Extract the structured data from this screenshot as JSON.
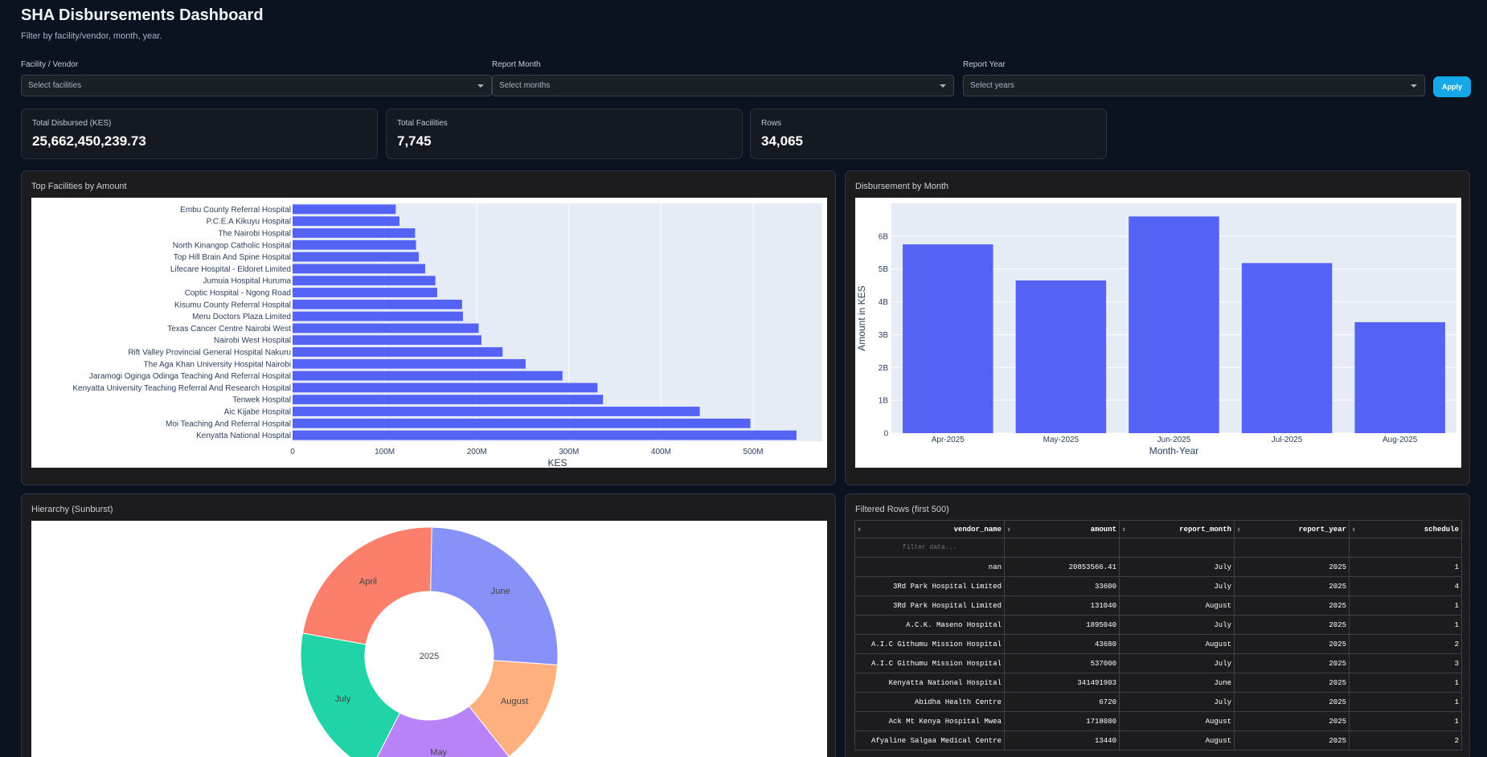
{
  "header": {
    "title": "SHA Disbursements Dashboard",
    "subtitle": "Filter by facility/vendor, month, year."
  },
  "filters": {
    "facility": {
      "label": "Facility / Vendor",
      "placeholder": "Select facilities"
    },
    "month": {
      "label": "Report Month",
      "placeholder": "Select months"
    },
    "year": {
      "label": "Report Year",
      "placeholder": "Select years"
    },
    "apply_label": "Apply"
  },
  "kpis": [
    {
      "label": "Total Disbursed (KES)",
      "value": "25,662,450,239.73"
    },
    {
      "label": "Total Facilities",
      "value": "7,745"
    },
    {
      "label": "Rows",
      "value": "34,065"
    }
  ],
  "panels": {
    "top_facilities": "Top Facilities by Amount",
    "by_month": "Disbursement by Month",
    "sunburst": "Hierarchy (Sunburst)",
    "table": "Filtered Rows (first 500)"
  },
  "colors": {
    "bar": "#5563f5",
    "plot_bg": "#e5ecf6",
    "april": "#fb7f6b",
    "june": "#8791f7",
    "july": "#20d4a8",
    "may": "#b883f6",
    "august": "#ffb07e"
  },
  "chart_data": [
    {
      "type": "bar",
      "orientation": "horizontal",
      "xlabel": "KES",
      "ylabel": "",
      "xlim": [
        0,
        575000000
      ],
      "xticks": [
        "0",
        "100M",
        "200M",
        "300M",
        "400M",
        "500M"
      ],
      "xtick_values": [
        0,
        100000000,
        200000000,
        300000000,
        400000000,
        500000000
      ],
      "categories": [
        "Embu County Referral Hospital",
        "P.C.E.A Kikuyu Hospital",
        "The Nairobi Hospital",
        "North Kinangop Catholic Hospital",
        "Top Hill Brain And Spine Hospital",
        "Lifecare Hospital - Eldoret Limited",
        "Jumuia Hospital Huruma",
        "Coptic Hospital - Ngong Road",
        "Kisumu County Referral Hospital",
        "Meru Doctors Plaza Limited",
        "Texas Cancer Centre Nairobi West",
        "Nairobi West Hospital",
        "Rift Valley Provincial General Hospital Nakuru",
        "The Aga Khan University Hospital Nairobi",
        "Jaramogi Oginga Odinga Teaching And Referral Hospital",
        "Kenyatta University Teaching Referral And Research Hospital",
        "Tenwek Hospital",
        "Aic Kijabe Hospital",
        "Moi Teaching And Referral Hospital",
        "Kenyatta National Hospital"
      ],
      "values": [
        112000000,
        116000000,
        133000000,
        134000000,
        137000000,
        144000000,
        155000000,
        157000000,
        184000000,
        185000000,
        202000000,
        205000000,
        228000000,
        253000000,
        293000000,
        331000000,
        337000000,
        442000000,
        497000000,
        547000000
      ],
      "grid": true
    },
    {
      "type": "bar",
      "xlabel": "Month-Year",
      "ylabel": "Amount in KES",
      "ylim": [
        0,
        7000000000
      ],
      "yticks": [
        "0",
        "1B",
        "2B",
        "3B",
        "4B",
        "5B",
        "6B"
      ],
      "ytick_values": [
        0,
        1000000000,
        2000000000,
        3000000000,
        4000000000,
        5000000000,
        6000000000
      ],
      "categories": [
        "Apr-2025",
        "May-2025",
        "Jun-2025",
        "Jul-2025",
        "Aug-2025"
      ],
      "values": [
        5750000000,
        4650000000,
        6600000000,
        5180000000,
        3380000000
      ],
      "grid": true
    },
    {
      "type": "sunburst",
      "center": "2025",
      "segments": [
        {
          "label": "June",
          "value": 6600000000,
          "color": "#8791f7"
        },
        {
          "label": "August",
          "value": 3380000000,
          "color": "#ffb07e"
        },
        {
          "label": "May",
          "value": 4650000000,
          "color": "#b883f6"
        },
        {
          "label": "July",
          "value": 5180000000,
          "color": "#20d4a8"
        },
        {
          "label": "April",
          "value": 5750000000,
          "color": "#fb7f6b"
        }
      ]
    }
  ],
  "table": {
    "columns": [
      "vendor_name",
      "amount",
      "report_month",
      "report_year",
      "schedule"
    ],
    "filter_placeholder": "filter data...",
    "rows": [
      [
        "nan",
        "20853566.41",
        "July",
        "2025",
        "1"
      ],
      [
        "3Rd Park Hospital Limited",
        "33600",
        "July",
        "2025",
        "4"
      ],
      [
        "3Rd Park Hospital Limited",
        "131040",
        "August",
        "2025",
        "1"
      ],
      [
        "A.C.K. Maseno Hospital",
        "1895040",
        "July",
        "2025",
        "1"
      ],
      [
        "A.I.C Githumu Mission Hospital",
        "43680",
        "August",
        "2025",
        "2"
      ],
      [
        "A.I.C Githumu Mission Hospital",
        "537000",
        "July",
        "2025",
        "3"
      ],
      [
        "Kenyatta National Hospital",
        "341491903",
        "June",
        "2025",
        "1"
      ],
      [
        "Abidha Health Centre",
        "6720",
        "July",
        "2025",
        "1"
      ],
      [
        "Ack Mt Kenya Hospital Mwea",
        "1718080",
        "August",
        "2025",
        "1"
      ],
      [
        "Afyaline Salgaa Medical Centre",
        "13440",
        "August",
        "2025",
        "2"
      ]
    ]
  }
}
